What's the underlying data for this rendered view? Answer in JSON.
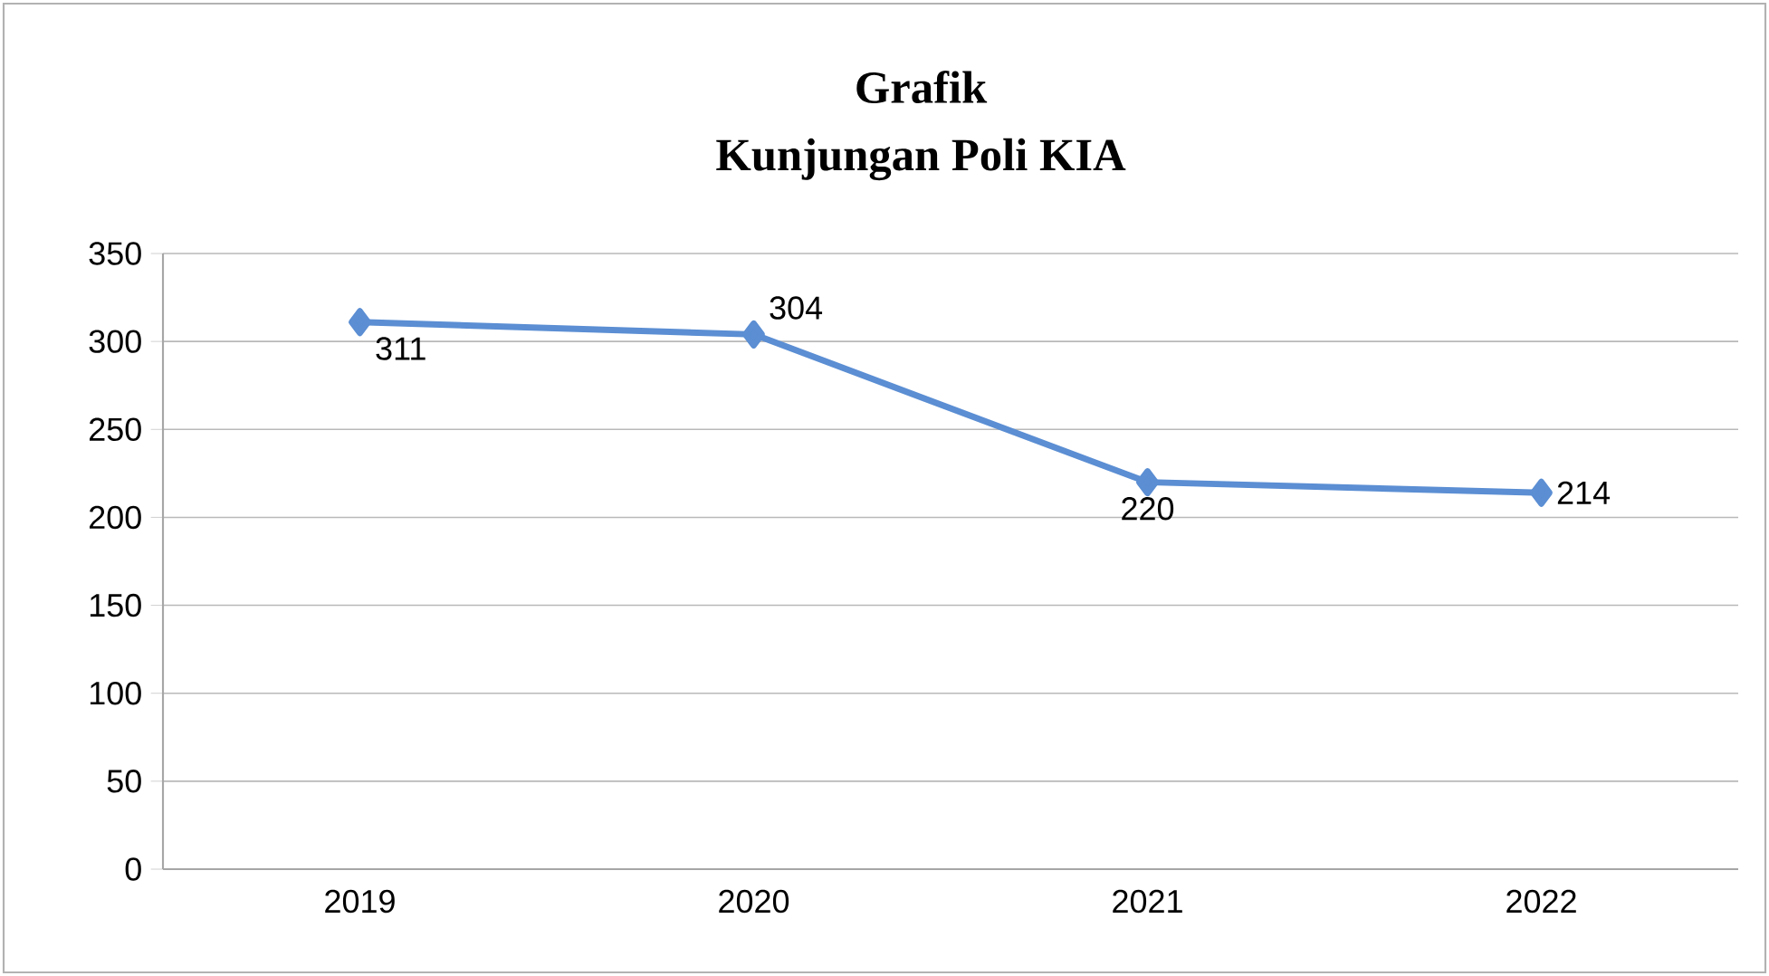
{
  "chart_data": {
    "type": "line",
    "title": "Grafik",
    "subtitle": "Kunjungan Poli KIA",
    "categories": [
      "2019",
      "2020",
      "2021",
      "2022"
    ],
    "values": [
      311,
      304,
      220,
      214
    ],
    "color": "#5b8ed3",
    "marker": "diamond",
    "ylim": [
      0,
      350
    ],
    "yticks": [
      0,
      50,
      100,
      150,
      200,
      250,
      300,
      350
    ],
    "grid": "y",
    "data_labels": true
  }
}
